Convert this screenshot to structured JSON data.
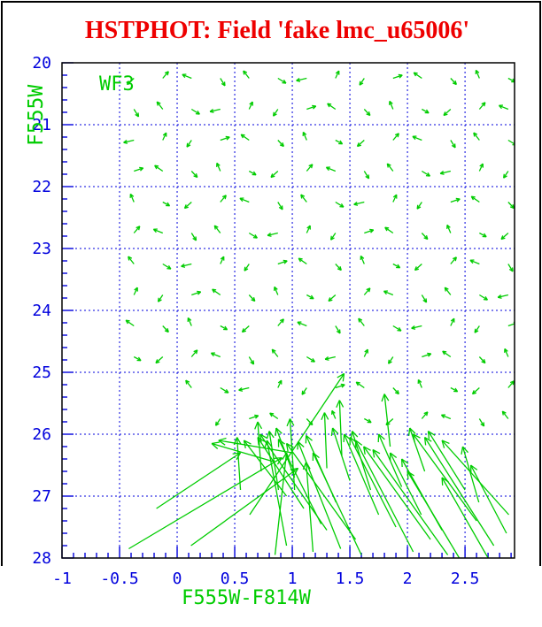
{
  "title": "HSTPHOT: Field 'fake lmc_u65006'",
  "colors": {
    "title": "#ee0000",
    "tick_text": "#0000dd",
    "grid": "#0000dd",
    "frame": "#000000",
    "vectors": "#00cc00",
    "background": "#ffffff"
  },
  "chart_data": {
    "type": "quiver",
    "title": "HSTPHOT: Field 'fake lmc_u65006'",
    "xlabel": "F555W-F814W",
    "ylabel": "F555W",
    "chip_label": "WF3",
    "xlim": [
      -1,
      2.93
    ],
    "ylim": [
      28,
      20
    ],
    "y_axis_inverted": true,
    "grid": "dotted blue lines at major ticks",
    "legend": "none",
    "x_ticks_major": [
      -1,
      -0.5,
      0,
      0.5,
      1,
      1.5,
      2,
      2.5
    ],
    "x_tick_labels": [
      "-1",
      "-0.5",
      "0",
      "0.5",
      "1",
      "1.5",
      "2",
      "2.5"
    ],
    "x_minor_step": 0.1,
    "y_ticks_major": [
      20,
      21,
      22,
      23,
      24,
      25,
      26,
      27,
      28
    ],
    "y_tick_labels": [
      "20",
      "21",
      "22",
      "23",
      "24",
      "25",
      "26",
      "27",
      "28"
    ],
    "y_minor_step": 0.2,
    "small_arrow_grid": {
      "comment": "fake-star recovery vectors on a regular (color,mag) grid; tail=input, head=tail+offset",
      "cols": [
        -0.375,
        -0.125,
        0.125,
        0.375,
        0.625,
        0.875,
        1.125,
        1.375,
        1.625,
        1.875,
        2.125,
        2.375,
        2.625,
        2.875
      ],
      "rows": [
        20.25,
        20.75,
        21.25,
        21.75,
        22.25,
        22.75,
        23.25,
        23.75,
        24.25,
        24.75,
        25.25,
        25.75
      ],
      "offsets": [
        [
          -0.06,
          0.1
        ],
        [
          0.05,
          -0.11
        ],
        [
          -0.08,
          -0.06
        ],
        [
          0.04,
          0.12
        ],
        [
          -0.05,
          -0.12
        ],
        [
          0.07,
          0.08
        ],
        [
          -0.09,
          0.04
        ],
        [
          0.03,
          -0.12
        ],
        [
          -0.04,
          0.11
        ],
        [
          0.08,
          -0.05
        ],
        [
          -0.07,
          -0.09
        ],
        [
          0.05,
          0.1
        ],
        [
          -0.03,
          -0.13
        ],
        [
          0.06,
          0.06
        ]
      ],
      "row_shift": 3,
      "skip": [
        [
          10,
          0
        ],
        [
          10,
          1
        ],
        [
          11,
          0
        ],
        [
          11,
          1
        ],
        [
          11,
          2
        ]
      ]
    },
    "long_arrows": [
      [
        1.3,
        27.55,
        0.72,
        26.0
      ],
      [
        1.1,
        27.2,
        0.7,
        26.05
      ],
      [
        0.95,
        27.8,
        0.78,
        26.1
      ],
      [
        1.55,
        27.7,
        0.95,
        26.15
      ],
      [
        0.88,
        26.9,
        0.8,
        25.95
      ],
      [
        1.02,
        26.7,
        0.86,
        25.9
      ],
      [
        2.05,
        27.9,
        1.55,
        26.1
      ],
      [
        1.9,
        27.5,
        1.5,
        26.05
      ],
      [
        2.2,
        27.7,
        1.62,
        26.2
      ],
      [
        1.75,
        27.3,
        1.45,
        26.0
      ],
      [
        1.68,
        26.9,
        1.52,
        25.95
      ],
      [
        2.35,
        27.95,
        1.7,
        26.25
      ],
      [
        2.6,
        27.4,
        2.05,
        26.0
      ],
      [
        2.75,
        27.8,
        2.15,
        26.05
      ],
      [
        2.5,
        26.9,
        2.18,
        25.95
      ],
      [
        2.88,
        27.3,
        2.3,
        26.1
      ],
      [
        2.86,
        27.6,
        2.55,
        26.5
      ],
      [
        2.62,
        27.1,
        2.48,
        26.2
      ],
      [
        -0.42,
        27.85,
        0.91,
        26.38
      ],
      [
        0.12,
        27.8,
        1.05,
        26.55
      ],
      [
        -0.18,
        27.2,
        0.55,
        26.3
      ],
      [
        1.0,
        26.3,
        0.36,
        26.1
      ],
      [
        0.85,
        26.45,
        0.3,
        26.15
      ],
      [
        0.63,
        27.3,
        1.45,
        25.02
      ],
      [
        1.43,
        26.35,
        1.41,
        25.45
      ],
      [
        1.02,
        26.9,
        0.98,
        25.75
      ],
      [
        0.73,
        26.6,
        0.7,
        25.8
      ],
      [
        0.95,
        27.0,
        0.58,
        26.1
      ],
      [
        1.25,
        27.45,
        0.88,
        26.08
      ],
      [
        1.42,
        27.85,
        1.05,
        26.12
      ],
      [
        1.6,
        27.95,
        1.18,
        26.3
      ],
      [
        1.38,
        27.1,
        1.12,
        26.02
      ],
      [
        1.5,
        26.75,
        1.35,
        25.9
      ],
      [
        2.12,
        27.3,
        1.85,
        26.3
      ],
      [
        2.3,
        27.55,
        1.95,
        26.4
      ],
      [
        1.95,
        26.85,
        1.75,
        26.0
      ],
      [
        2.45,
        28.0,
        2.0,
        26.6
      ],
      [
        2.7,
        28.0,
        2.3,
        26.7
      ],
      [
        1.18,
        27.9,
        1.12,
        26.45
      ],
      [
        0.85,
        27.95,
        0.95,
        26.3
      ],
      [
        1.3,
        26.55,
        1.28,
        25.65
      ],
      [
        1.85,
        26.2,
        1.8,
        25.35
      ],
      [
        0.55,
        26.9,
        0.52,
        26.05
      ],
      [
        2.15,
        26.6,
        2.02,
        25.9
      ]
    ]
  }
}
